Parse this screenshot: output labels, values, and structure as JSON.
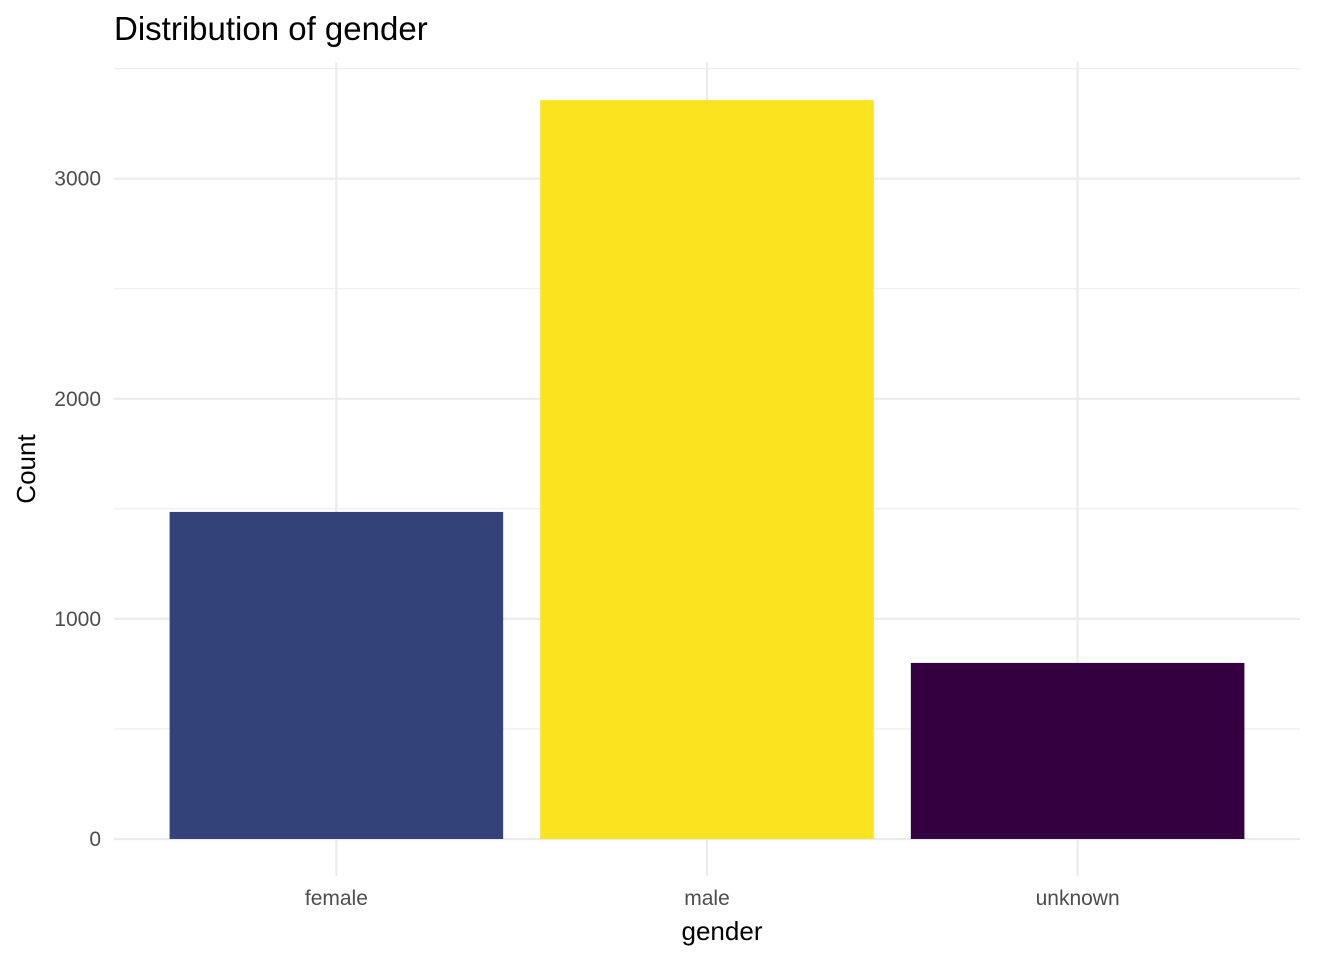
{
  "chart_data": {
    "type": "bar",
    "title": "Distribution of gender",
    "xlabel": "gender",
    "ylabel": "Count",
    "categories": [
      "female",
      "male",
      "unknown"
    ],
    "values": [
      1486,
      3357,
      800
    ],
    "colors": [
      "#33437A",
      "#FBE31F",
      "#350040"
    ],
    "ylim": [
      0,
      3540
    ],
    "yticks": [
      0,
      1000,
      2000,
      3000
    ],
    "yticks_minor": [
      500,
      1500,
      2500,
      3500
    ],
    "ytick_labels": [
      "0",
      "1000",
      "2000",
      "3000"
    ],
    "grid": true,
    "legend": "none"
  }
}
